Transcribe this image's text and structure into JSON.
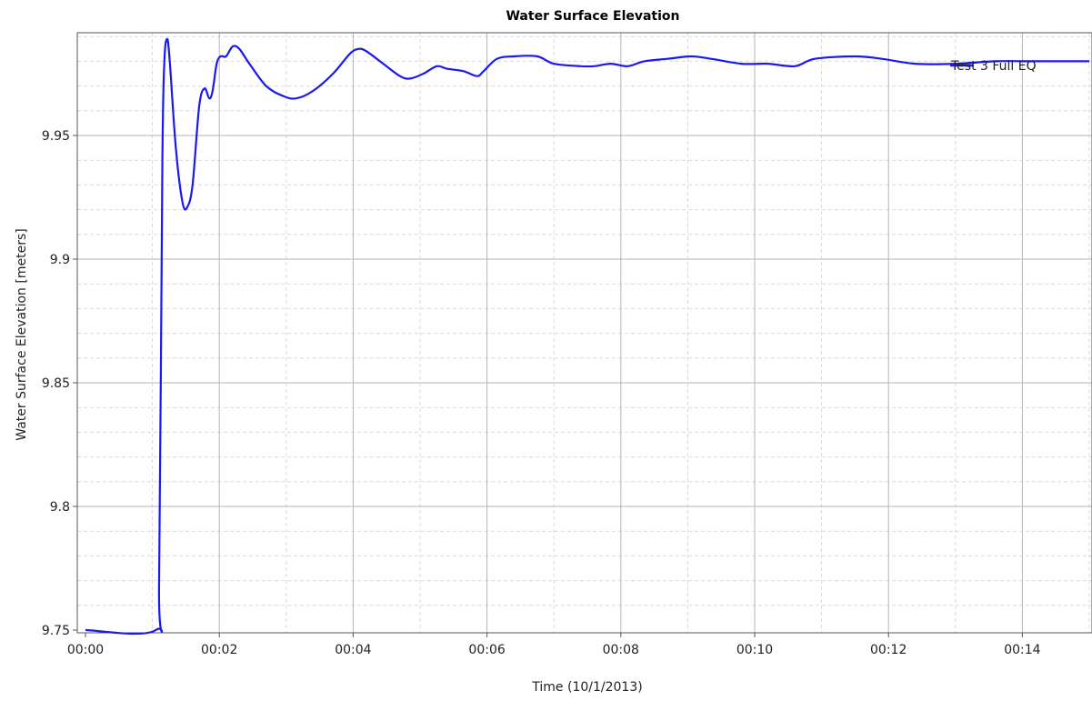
{
  "chart_data": {
    "type": "line",
    "title": "Water Surface Elevation",
    "xlabel": "Time (10/1/2013)",
    "ylabel": "Water Surface Elevation [meters]",
    "x_unit": "minutes",
    "xlim": [
      0,
      15
    ],
    "ylim": [
      9.75,
      9.99
    ],
    "x_ticks": [
      {
        "value": 0,
        "label": "00:00"
      },
      {
        "value": 2,
        "label": "00:02"
      },
      {
        "value": 4,
        "label": "00:04"
      },
      {
        "value": 6,
        "label": "00:06"
      },
      {
        "value": 8,
        "label": "00:08"
      },
      {
        "value": 10,
        "label": "00:10"
      },
      {
        "value": 12,
        "label": "00:12"
      },
      {
        "value": 14,
        "label": "00:14"
      }
    ],
    "y_ticks": [
      {
        "value": 9.75,
        "label": "9.75"
      },
      {
        "value": 9.8,
        "label": "9.8"
      },
      {
        "value": 9.85,
        "label": "9.85"
      },
      {
        "value": 9.9,
        "label": "9.9"
      },
      {
        "value": 9.95,
        "label": "9.95"
      }
    ],
    "grid": true,
    "legend_position": "top-right",
    "series": [
      {
        "name": "Test 3 Full EQ",
        "color": "#1a1aee",
        "points": [
          [
            0.0,
            9.75
          ],
          [
            1.05,
            9.75
          ],
          [
            1.1,
            9.77
          ],
          [
            1.15,
            9.94
          ],
          [
            1.18,
            9.98
          ],
          [
            1.22,
            9.989
          ],
          [
            1.26,
            9.98
          ],
          [
            1.35,
            9.945
          ],
          [
            1.45,
            9.923
          ],
          [
            1.52,
            9.921
          ],
          [
            1.6,
            9.93
          ],
          [
            1.7,
            9.962
          ],
          [
            1.78,
            9.969
          ],
          [
            1.85,
            9.965
          ],
          [
            1.9,
            9.968
          ],
          [
            1.96,
            9.979
          ],
          [
            2.02,
            9.982
          ],
          [
            2.1,
            9.982
          ],
          [
            2.2,
            9.986
          ],
          [
            2.3,
            9.985
          ],
          [
            2.45,
            9.979
          ],
          [
            2.7,
            9.97
          ],
          [
            2.95,
            9.966
          ],
          [
            3.15,
            9.965
          ],
          [
            3.4,
            9.968
          ],
          [
            3.7,
            9.975
          ],
          [
            3.95,
            9.983
          ],
          [
            4.08,
            9.985
          ],
          [
            4.2,
            9.984
          ],
          [
            4.45,
            9.979
          ],
          [
            4.7,
            9.974
          ],
          [
            4.85,
            9.973
          ],
          [
            5.05,
            9.975
          ],
          [
            5.25,
            9.978
          ],
          [
            5.4,
            9.977
          ],
          [
            5.65,
            9.976
          ],
          [
            5.85,
            9.974
          ],
          [
            5.95,
            9.976
          ],
          [
            6.15,
            9.981
          ],
          [
            6.4,
            9.982
          ],
          [
            6.75,
            9.982
          ],
          [
            7.0,
            9.979
          ],
          [
            7.4,
            9.978
          ],
          [
            7.6,
            9.978
          ],
          [
            7.85,
            9.979
          ],
          [
            8.1,
            9.978
          ],
          [
            8.35,
            9.98
          ],
          [
            8.7,
            9.981
          ],
          [
            9.05,
            9.982
          ],
          [
            9.35,
            9.981
          ],
          [
            9.8,
            9.979
          ],
          [
            10.2,
            9.979
          ],
          [
            10.6,
            9.978
          ],
          [
            10.9,
            9.981
          ],
          [
            11.5,
            9.982
          ],
          [
            11.9,
            9.981
          ],
          [
            12.4,
            9.979
          ],
          [
            13.0,
            9.979
          ],
          [
            13.6,
            9.98
          ],
          [
            14.1,
            9.98
          ],
          [
            14.6,
            9.98
          ],
          [
            15.0,
            9.98
          ]
        ]
      }
    ]
  }
}
